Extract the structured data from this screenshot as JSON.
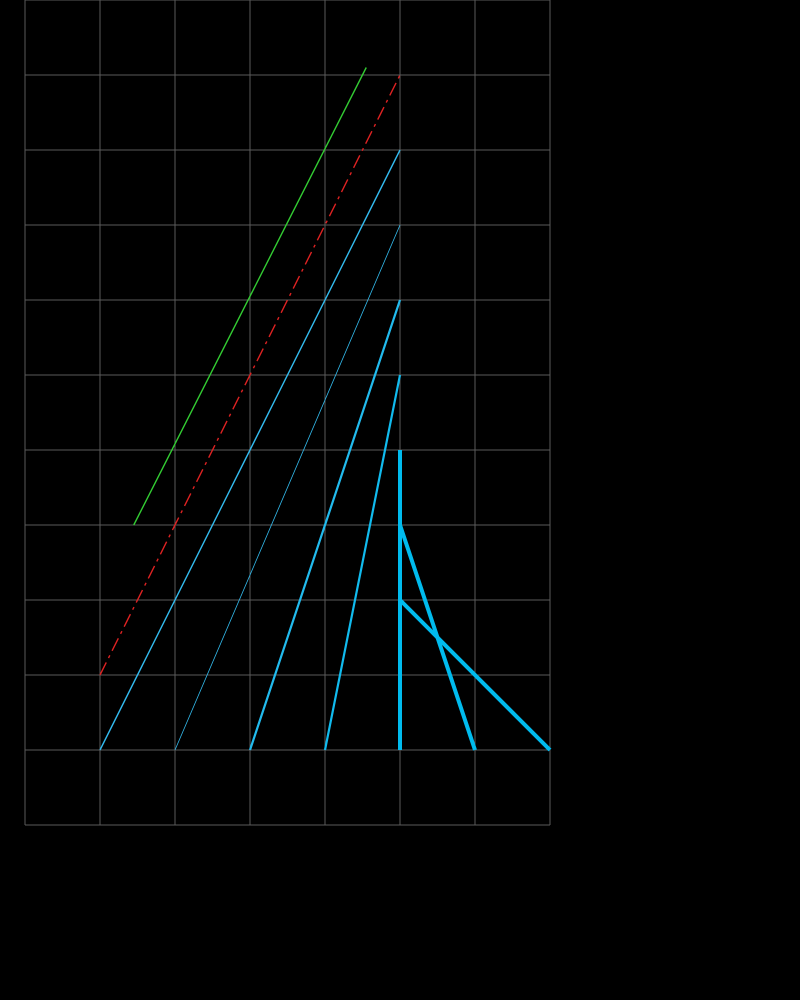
{
  "diagram": {
    "background_color": "#000000",
    "grid": {
      "columns": 7,
      "rows": 11,
      "line_color": "#5a5a5a"
    },
    "lines": [
      {
        "name": "green-line",
        "color": "#33cc33",
        "style": "solid",
        "weight": "thin",
        "from": [
          1.45,
          3
        ],
        "to": [
          4.55,
          9.1
        ]
      },
      {
        "name": "red-dashed-line",
        "color": "#dd2222",
        "style": "dash-dot",
        "weight": "thin",
        "from": [
          1,
          1
        ],
        "to": [
          5,
          9
        ]
      },
      {
        "name": "blue-line-1",
        "color": "#33bbee",
        "style": "solid",
        "weight": "thin",
        "from": [
          1,
          0
        ],
        "to": [
          5,
          8
        ]
      },
      {
        "name": "blue-line-2",
        "color": "#33bbee",
        "style": "solid",
        "weight": "hair",
        "from": [
          2,
          0
        ],
        "to": [
          5,
          7
        ]
      },
      {
        "name": "blue-line-3",
        "color": "#22bbee",
        "style": "solid",
        "weight": "mid",
        "from": [
          3,
          0
        ],
        "to": [
          5,
          6
        ]
      },
      {
        "name": "blue-line-4",
        "color": "#11bbee",
        "style": "solid",
        "weight": "mid",
        "from": [
          4,
          0
        ],
        "to": [
          5,
          5
        ]
      },
      {
        "name": "blue-line-5",
        "color": "#00bbee",
        "style": "solid",
        "weight": "thick",
        "from": [
          5,
          0
        ],
        "to": [
          5,
          4
        ]
      },
      {
        "name": "blue-line-6",
        "color": "#00bbee",
        "style": "solid",
        "weight": "thick",
        "from": [
          5,
          3
        ],
        "to": [
          6,
          0
        ]
      },
      {
        "name": "blue-line-7",
        "color": "#00bbee",
        "style": "solid",
        "weight": "thick",
        "from": [
          5,
          2
        ],
        "to": [
          7,
          0
        ]
      }
    ]
  }
}
